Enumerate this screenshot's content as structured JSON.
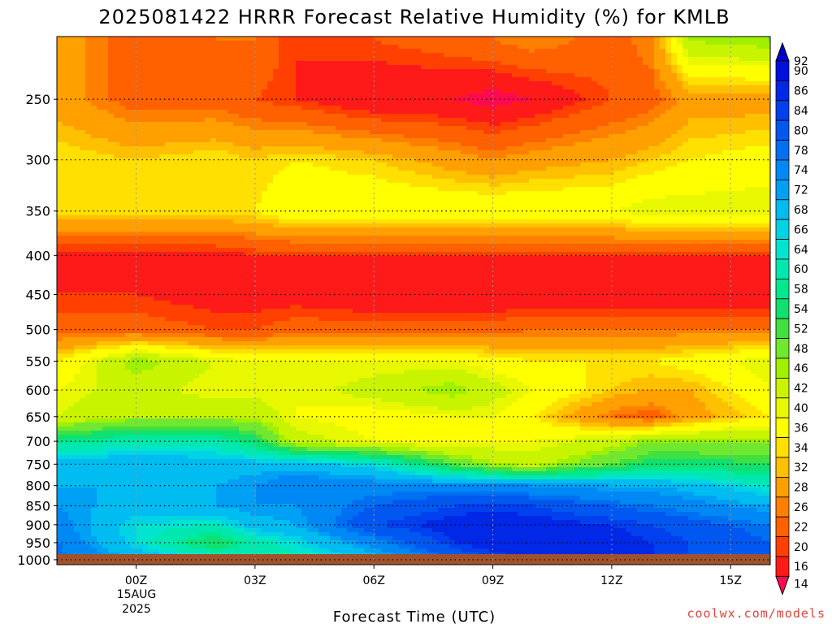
{
  "chart_data": {
    "type": "heatmap",
    "title": "2025081422 HRRR Forecast Relative Humidity (%) for KMLB",
    "xlabel": "Forecast Time (UTC)",
    "x_ticks": [
      "00Z",
      "03Z",
      "06Z",
      "09Z",
      "12Z",
      "15Z"
    ],
    "x_tick_hours": [
      0,
      3,
      6,
      9,
      12,
      15
    ],
    "x_date_line1": "15AUG",
    "x_date_line2": "2025",
    "xlim_hours": [
      -2,
      16
    ],
    "y_scale": "log",
    "y_reversed": true,
    "ylim_hPa": [
      1015,
      207
    ],
    "y_ticks": [
      250,
      300,
      350,
      400,
      450,
      500,
      550,
      600,
      650,
      700,
      750,
      800,
      850,
      900,
      950,
      1000
    ],
    "grid": true,
    "colorbar_levels": [
      92,
      90,
      86,
      84,
      80,
      78,
      74,
      72,
      68,
      66,
      64,
      60,
      58,
      54,
      52,
      48,
      46,
      42,
      40,
      36,
      34,
      32,
      28,
      26,
      22,
      20,
      16,
      14
    ],
    "colorbar_colors": [
      "#0000c8",
      "#0010dc",
      "#0028e6",
      "#0040ee",
      "#0058f0",
      "#0070f2",
      "#0088f4",
      "#00a0f4",
      "#00bcf0",
      "#00d4e4",
      "#00e4d0",
      "#00e8b0",
      "#00e890",
      "#10e070",
      "#40e040",
      "#70e830",
      "#a0f000",
      "#c8f400",
      "#e8f800",
      "#ffff00",
      "#ffe000",
      "#ffc000",
      "#ffa000",
      "#ff8000",
      "#ff6000",
      "#ff4000",
      "#ff1a1a",
      "#ff0a50"
    ],
    "rh_profile_levels_hPa": [
      1000,
      950,
      900,
      850,
      800,
      750,
      700,
      650,
      600,
      550,
      500,
      450,
      400,
      350,
      300,
      250,
      210
    ],
    "rh_profiles": [
      {
        "hour": -2,
        "values": [
          80,
          78,
          76,
          74,
          72,
          70,
          58,
          42,
          40,
          36,
          24,
          20,
          18,
          36,
          36,
          30,
          30
        ]
      },
      {
        "hour": 0,
        "values": [
          72,
          66,
          66,
          70,
          72,
          72,
          62,
          46,
          44,
          48,
          24,
          20,
          18,
          36,
          34,
          24,
          24
        ]
      },
      {
        "hour": 2,
        "values": [
          66,
          54,
          64,
          72,
          72,
          70,
          62,
          46,
          40,
          42,
          22,
          18,
          18,
          36,
          36,
          24,
          26
        ]
      },
      {
        "hour": 3,
        "values": [
          62,
          62,
          70,
          74,
          74,
          70,
          56,
          46,
          40,
          40,
          22,
          18,
          20,
          36,
          34,
          22,
          26
        ]
      },
      {
        "hour": 4,
        "values": [
          62,
          66,
          72,
          74,
          78,
          70,
          44,
          40,
          40,
          40,
          24,
          18,
          20,
          40,
          36,
          20,
          20
        ]
      },
      {
        "hour": 6,
        "values": [
          70,
          76,
          84,
          80,
          76,
          66,
          40,
          38,
          44,
          40,
          24,
          16,
          20,
          40,
          34,
          16,
          22
        ]
      },
      {
        "hour": 8,
        "values": [
          80,
          86,
          88,
          84,
          76,
          52,
          38,
          40,
          48,
          40,
          24,
          16,
          20,
          40,
          30,
          16,
          24
        ]
      },
      {
        "hour": 9,
        "values": [
          84,
          88,
          90,
          84,
          76,
          46,
          40,
          40,
          44,
          38,
          24,
          16,
          20,
          40,
          28,
          14,
          26
        ]
      },
      {
        "hour": 10,
        "values": [
          86,
          90,
          88,
          84,
          74,
          44,
          40,
          36,
          40,
          36,
          26,
          16,
          20,
          40,
          30,
          16,
          28
        ]
      },
      {
        "hour": 12,
        "values": [
          86,
          88,
          86,
          80,
          72,
          52,
          44,
          26,
          34,
          36,
          26,
          16,
          20,
          40,
          32,
          22,
          24
        ]
      },
      {
        "hour": 13,
        "values": [
          86,
          86,
          84,
          78,
          72,
          56,
          48,
          24,
          32,
          36,
          26,
          16,
          20,
          42,
          34,
          24,
          28
        ]
      },
      {
        "hour": 14,
        "values": [
          84,
          84,
          82,
          76,
          70,
          56,
          48,
          30,
          32,
          38,
          26,
          16,
          20,
          42,
          36,
          30,
          46
        ]
      },
      {
        "hour": 16,
        "values": [
          80,
          80,
          78,
          72,
          64,
          54,
          48,
          36,
          40,
          42,
          26,
          16,
          20,
          42,
          38,
          30,
          48
        ]
      }
    ],
    "ground_color": "#a0522d",
    "credit": "coolwx.com/models"
  }
}
